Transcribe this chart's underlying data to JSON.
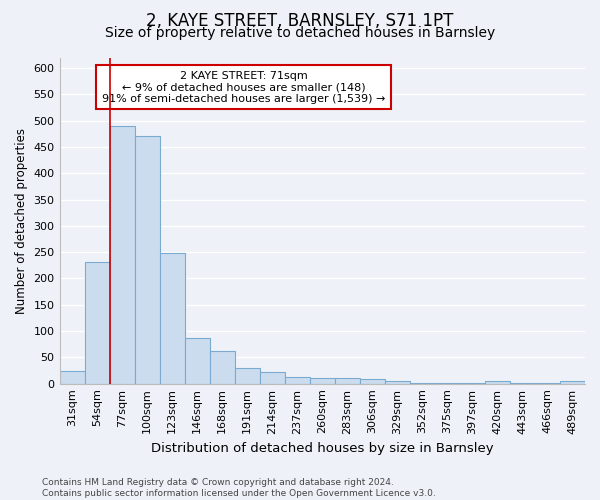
{
  "title": "2, KAYE STREET, BARNSLEY, S71 1PT",
  "subtitle": "Size of property relative to detached houses in Barnsley",
  "xlabel": "Distribution of detached houses by size in Barnsley",
  "ylabel": "Number of detached properties",
  "categories": [
    "31sqm",
    "54sqm",
    "77sqm",
    "100sqm",
    "123sqm",
    "146sqm",
    "168sqm",
    "191sqm",
    "214sqm",
    "237sqm",
    "260sqm",
    "283sqm",
    "306sqm",
    "329sqm",
    "352sqm",
    "375sqm",
    "397sqm",
    "420sqm",
    "443sqm",
    "466sqm",
    "489sqm"
  ],
  "values": [
    25,
    232,
    490,
    470,
    248,
    87,
    63,
    30,
    22,
    13,
    10,
    10,
    8,
    5,
    2,
    2,
    2,
    6,
    2,
    2,
    5
  ],
  "bar_color": "#ccdcef",
  "bar_edge_color": "#7aaad0",
  "vline_index": 2,
  "vline_color": "#cc0000",
  "annotation_text": "2 KAYE STREET: 71sqm\n← 9% of detached houses are smaller (148)\n91% of semi-detached houses are larger (1,539) →",
  "annotation_box_color": "white",
  "annotation_box_edge_color": "#cc0000",
  "ylim": [
    0,
    620
  ],
  "yticks": [
    0,
    50,
    100,
    150,
    200,
    250,
    300,
    350,
    400,
    450,
    500,
    550,
    600
  ],
  "background_color": "#eef2f8",
  "grid_color": "#ffffff",
  "footer": "Contains HM Land Registry data © Crown copyright and database right 2024.\nContains public sector information licensed under the Open Government Licence v3.0.",
  "title_fontsize": 12,
  "subtitle_fontsize": 10,
  "xlabel_fontsize": 9.5,
  "ylabel_fontsize": 8.5,
  "tick_fontsize": 8,
  "annotation_fontsize": 8,
  "footer_fontsize": 6.5
}
